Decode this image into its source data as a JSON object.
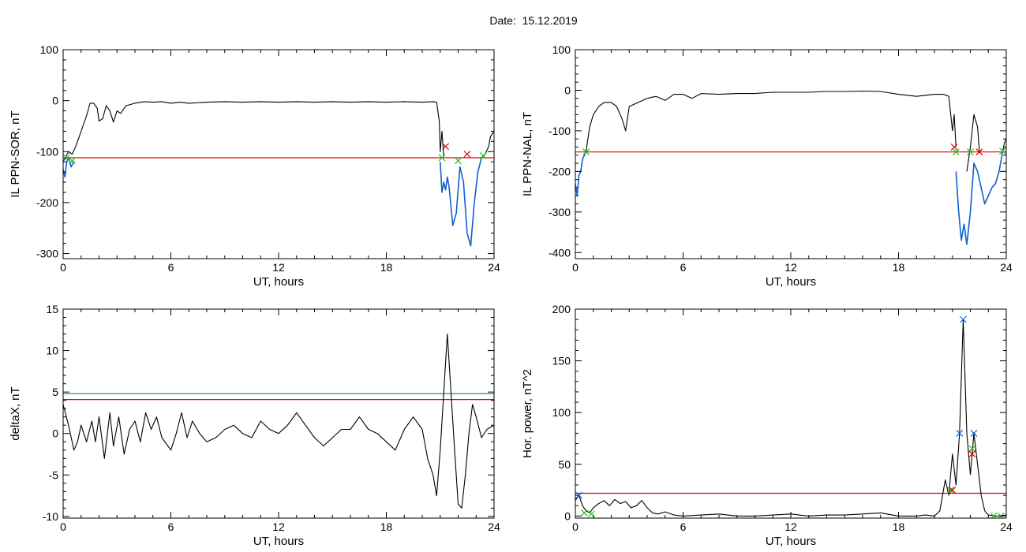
{
  "header": {
    "title": "Date:  15.12.2019"
  },
  "colors": {
    "trace": "#000000",
    "red": "#e00000",
    "blue": "#1060d0",
    "green": "#20c020",
    "teal": "#1890a0",
    "frame": "#000000"
  },
  "chart_data": [
    {
      "type": "line",
      "id": "sor",
      "xlabel": "UT, hours",
      "ylabel": "IL PPN-SOR, nT",
      "xlim": [
        0,
        24
      ],
      "ylim": [
        -310,
        100
      ],
      "xticks": [
        0,
        6,
        12,
        18,
        24
      ],
      "yticks": [
        -300,
        -200,
        -100,
        0,
        100
      ],
      "ytick_labels": [
        "-300",
        "-200",
        "-100",
        "0",
        "100"
      ],
      "hlines": [
        {
          "y": -112,
          "color": "red"
        }
      ],
      "series": [
        {
          "color": "trace",
          "x": [
            0,
            0.15,
            0.3,
            0.5,
            0.7,
            0.9,
            1.1,
            1.3,
            1.5,
            1.7,
            1.9,
            2.0,
            2.2,
            2.4,
            2.6,
            2.8,
            3.0,
            3.2,
            3.5,
            4.0,
            4.5,
            5.0,
            5.5,
            6.0,
            6.5,
            7.0,
            8.0,
            9.0,
            10.0,
            11.0,
            12.0,
            13.0,
            14.0,
            15.0,
            16.0,
            17.0,
            18.0,
            19.0,
            20.0,
            20.6,
            20.8,
            20.95
          ],
          "y": [
            -120,
            -110,
            -100,
            -105,
            -90,
            -70,
            -50,
            -30,
            -5,
            -5,
            -15,
            -40,
            -35,
            -10,
            -20,
            -42,
            -20,
            -25,
            -10,
            -5,
            -2,
            -3,
            -2,
            -5,
            -3,
            -5,
            -3,
            -2,
            -3,
            -2,
            -3,
            -2,
            -3,
            -2,
            -3,
            -2,
            -3,
            -2,
            -3,
            -2,
            -3,
            -40
          ]
        },
        {
          "color": "blue",
          "x": [
            0,
            0.1,
            0.2,
            0.3,
            0.45,
            0.6
          ],
          "y": [
            -135,
            -150,
            -120,
            -112,
            -130,
            -118
          ]
        },
        {
          "color": "trace",
          "x": [
            20.95,
            21.0,
            21.1,
            21.2
          ],
          "y": [
            -40,
            -100,
            -60,
            -110
          ]
        },
        {
          "color": "blue",
          "x": [
            21.0,
            21.1,
            21.2,
            21.3,
            21.4,
            21.5,
            21.7,
            21.9,
            22.1,
            22.3,
            22.5,
            22.7,
            22.9,
            23.1,
            23.3,
            23.5
          ],
          "y": [
            -120,
            -180,
            -160,
            -175,
            -150,
            -170,
            -245,
            -220,
            -130,
            -160,
            -260,
            -285,
            -200,
            -140,
            -112,
            -105
          ]
        },
        {
          "color": "trace",
          "x": [
            23.5,
            23.7,
            23.8,
            24.0
          ],
          "y": [
            -105,
            -90,
            -70,
            -60
          ]
        }
      ],
      "markers": [
        {
          "x": 0.2,
          "y": -112,
          "color": "green"
        },
        {
          "x": 0.5,
          "y": -118,
          "color": "green"
        },
        {
          "x": 21.1,
          "y": -112,
          "color": "green"
        },
        {
          "x": 22.0,
          "y": -118,
          "color": "green"
        },
        {
          "x": 23.4,
          "y": -108,
          "color": "green"
        },
        {
          "x": 21.3,
          "y": -90,
          "color": "red"
        },
        {
          "x": 22.5,
          "y": -105,
          "color": "red"
        }
      ]
    },
    {
      "type": "line",
      "id": "nal",
      "xlabel": "UT, hours",
      "ylabel": "IL PPN-NAL, nT",
      "xlim": [
        0,
        24
      ],
      "ylim": [
        -415,
        100
      ],
      "xticks": [
        0,
        6,
        12,
        18,
        24
      ],
      "yticks": [
        -400,
        -300,
        -200,
        -100,
        0,
        100
      ],
      "ytick_labels": [
        "-400",
        "-300",
        "-200",
        "-100",
        "0",
        "100"
      ],
      "hlines": [
        {
          "y": -152,
          "color": "red"
        }
      ],
      "series": [
        {
          "color": "trace",
          "x": [
            0.6,
            0.8,
            1.0,
            1.3,
            1.6,
            2.0,
            2.3,
            2.6,
            2.8,
            3.0,
            3.5,
            4.0,
            4.5,
            5.0,
            5.5,
            6.0,
            6.5,
            7.0,
            8.0,
            9.0,
            10.0,
            11.0,
            12.0,
            13.0,
            14.0,
            15.0,
            16.0,
            17.0,
            18.0,
            19.0,
            20.0,
            20.5,
            20.8,
            21.0
          ],
          "y": [
            -150,
            -90,
            -60,
            -40,
            -30,
            -30,
            -40,
            -70,
            -100,
            -40,
            -30,
            -20,
            -15,
            -25,
            -10,
            -10,
            -20,
            -8,
            -10,
            -8,
            -8,
            -5,
            -5,
            -5,
            -3,
            -3,
            -2,
            -3,
            -10,
            -15,
            -10,
            -10,
            -15,
            -100
          ]
        },
        {
          "color": "blue",
          "x": [
            0,
            0.1,
            0.2,
            0.3,
            0.4,
            0.5,
            0.6
          ],
          "y": [
            -230,
            -260,
            -210,
            -200,
            -170,
            -160,
            -150
          ]
        },
        {
          "color": "trace",
          "x": [
            21.0,
            21.1,
            21.2
          ],
          "y": [
            -100,
            -60,
            -140
          ]
        },
        {
          "color": "blue",
          "x": [
            21.2,
            21.35,
            21.5,
            21.65,
            21.8,
            22.0,
            22.2,
            22.4,
            22.6,
            22.8,
            23.0,
            23.2,
            23.4,
            23.6,
            23.8
          ],
          "y": [
            -200,
            -300,
            -370,
            -330,
            -380,
            -300,
            -180,
            -200,
            -240,
            -280,
            -260,
            -240,
            -230,
            -200,
            -150
          ]
        },
        {
          "color": "trace",
          "x": [
            21.8,
            22.0,
            22.2,
            22.4,
            22.5
          ],
          "y": [
            -200,
            -140,
            -60,
            -90,
            -150
          ]
        },
        {
          "color": "trace",
          "x": [
            23.8,
            23.9,
            24.0
          ],
          "y": [
            -150,
            -130,
            -120
          ]
        }
      ],
      "markers": [
        {
          "x": 0.6,
          "y": -152,
          "color": "green"
        },
        {
          "x": 21.2,
          "y": -152,
          "color": "green"
        },
        {
          "x": 22.0,
          "y": -152,
          "color": "green"
        },
        {
          "x": 23.8,
          "y": -150,
          "color": "green"
        },
        {
          "x": 21.1,
          "y": -140,
          "color": "red"
        },
        {
          "x": 22.5,
          "y": -152,
          "color": "red"
        }
      ]
    },
    {
      "type": "line",
      "id": "deltax",
      "xlabel": "UT, hours",
      "ylabel": "deltaX, nT",
      "xlim": [
        0,
        24
      ],
      "ylim": [
        -10.2,
        15
      ],
      "xticks": [
        0,
        6,
        12,
        18,
        24
      ],
      "yticks": [
        -10,
        -5,
        0,
        5,
        10,
        15
      ],
      "ytick_labels": [
        "-10",
        "-5",
        "0",
        "5",
        "10",
        "15"
      ],
      "hlines": [
        {
          "y": 4.8,
          "color": "teal"
        },
        {
          "y": 4.1,
          "color": "red"
        }
      ],
      "series": [
        {
          "color": "trace",
          "x": [
            0,
            0.3,
            0.6,
            0.8,
            1.0,
            1.3,
            1.6,
            1.8,
            2.0,
            2.3,
            2.6,
            2.8,
            3.1,
            3.4,
            3.7,
            4.0,
            4.3,
            4.6,
            4.9,
            5.2,
            5.5,
            6.0,
            6.3,
            6.6,
            6.9,
            7.2,
            7.6,
            8.0,
            8.5,
            9.0,
            9.5,
            10.0,
            10.5,
            11.0,
            11.5,
            12.0,
            12.5,
            13.0,
            13.5,
            14.0,
            14.5,
            15.0,
            15.5,
            16.0,
            16.5,
            17.0,
            17.5,
            18.0,
            18.5,
            19.0,
            19.5,
            20.0,
            20.3,
            20.6,
            20.8,
            21.0,
            21.2,
            21.4,
            21.6,
            21.8,
            22.0,
            22.2,
            22.4,
            22.6,
            22.8,
            23.0,
            23.3,
            23.6,
            24.0
          ],
          "y": [
            3.5,
            1.0,
            -2.0,
            -1.0,
            1.0,
            -1.0,
            1.5,
            -1.0,
            2.0,
            -3.0,
            2.5,
            -1.5,
            2.0,
            -2.5,
            0.5,
            1.5,
            -1.0,
            2.5,
            0.5,
            2.0,
            -0.5,
            -2.0,
            0.0,
            2.5,
            -0.5,
            1.5,
            0.0,
            -1.0,
            -0.5,
            0.5,
            1.0,
            0.0,
            -0.5,
            1.5,
            0.5,
            0.0,
            1.0,
            2.5,
            1.0,
            -0.5,
            -1.5,
            -0.5,
            0.5,
            0.5,
            2.0,
            0.5,
            0.0,
            -1.0,
            -2.0,
            0.5,
            2.0,
            0.5,
            -3.0,
            -5.0,
            -7.5,
            -2.0,
            5.0,
            12.0,
            5.0,
            -2.0,
            -8.5,
            -9.0,
            -5.0,
            0.0,
            3.5,
            2.0,
            -0.5,
            0.5,
            1.0
          ]
        }
      ],
      "markers": []
    },
    {
      "type": "line",
      "id": "power",
      "xlabel": "UT, hours",
      "ylabel": "Hor. power, nT^2",
      "xlim": [
        0,
        24
      ],
      "ylim": [
        -2,
        200
      ],
      "xticks": [
        0,
        6,
        12,
        18,
        24
      ],
      "yticks": [
        0,
        50,
        100,
        150,
        200
      ],
      "ytick_labels": [
        "0",
        "50",
        "100",
        "150",
        "200"
      ],
      "hlines": [
        {
          "y": 22,
          "color": "red"
        }
      ],
      "series": [
        {
          "color": "trace",
          "x": [
            0,
            0.2,
            0.4,
            0.6,
            0.8,
            1.0,
            1.3,
            1.6,
            1.9,
            2.2,
            2.5,
            2.8,
            3.1,
            3.4,
            3.7,
            4.0,
            4.3,
            4.6,
            5.0,
            5.5,
            6.0,
            7.0,
            8.0,
            9.0,
            10.0,
            11.0,
            12.0,
            13.0,
            14.0,
            15.0,
            16.0,
            17.0,
            18.0,
            19.0,
            19.5,
            20.0,
            20.3,
            20.6,
            20.8,
            21.0,
            21.2,
            21.4,
            21.6,
            21.8,
            22.0,
            22.2,
            22.4,
            22.6,
            22.8,
            23.0,
            23.5,
            24.0
          ],
          "y": [
            15,
            20,
            10,
            5,
            3,
            8,
            12,
            15,
            10,
            16,
            12,
            14,
            8,
            10,
            15,
            8,
            3,
            2,
            4,
            1,
            0,
            1,
            2,
            0,
            0,
            1,
            2,
            0,
            1,
            1,
            2,
            3,
            0,
            0,
            1,
            0,
            5,
            35,
            20,
            60,
            30,
            80,
            190,
            80,
            40,
            80,
            50,
            20,
            5,
            1,
            0,
            1
          ]
        }
      ],
      "markers": [
        {
          "x": 0.2,
          "y": 20,
          "color": "blue"
        },
        {
          "x": 21.4,
          "y": 80,
          "color": "blue"
        },
        {
          "x": 21.6,
          "y": 190,
          "color": "blue"
        },
        {
          "x": 22.2,
          "y": 80,
          "color": "blue"
        },
        {
          "x": 0.5,
          "y": 3,
          "color": "green"
        },
        {
          "x": 0.9,
          "y": 2,
          "color": "green"
        },
        {
          "x": 20.9,
          "y": 25,
          "color": "green"
        },
        {
          "x": 22.1,
          "y": 65,
          "color": "green"
        },
        {
          "x": 23.3,
          "y": 0,
          "color": "green"
        },
        {
          "x": 23.7,
          "y": 0,
          "color": "green"
        },
        {
          "x": 21.0,
          "y": 25,
          "color": "red"
        },
        {
          "x": 22.1,
          "y": 60,
          "color": "red"
        }
      ]
    }
  ]
}
